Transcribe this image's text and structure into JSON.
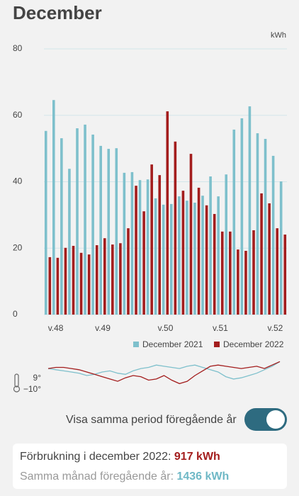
{
  "chart_data": [
    {
      "type": "bar",
      "title": "December",
      "y_label": "kWh",
      "categories": [
        null,
        "v.48",
        null,
        null,
        null,
        null,
        null,
        "v.49",
        null,
        null,
        null,
        null,
        null,
        null,
        null,
        "v.50",
        null,
        null,
        null,
        null,
        null,
        null,
        "v.51",
        null,
        null,
        null,
        null,
        null,
        null,
        "v.52",
        null
      ],
      "series": [
        {
          "name": "December 2021",
          "color": "#7ec0cc",
          "values": [
            55.3,
            64.6,
            53.1,
            43.9,
            56.1,
            57.2,
            54.2,
            50.8,
            49.9,
            50.1,
            42.7,
            42.9,
            40.5,
            40.7,
            35.0,
            33.1,
            33.3,
            35.6,
            34.3,
            33.7,
            35.8,
            41.6,
            35.6,
            42.2,
            55.7,
            59.1,
            62.7,
            54.6,
            52.9,
            47.8,
            40.1
          ]
        },
        {
          "name": "December 2022",
          "color": "#a31d1d",
          "values": [
            17.3,
            17.1,
            20.1,
            20.7,
            18.6,
            18.1,
            20.9,
            23.0,
            21.1,
            21.5,
            26.0,
            38.8,
            31.1,
            45.2,
            42.0,
            61.2,
            52.1,
            37.3,
            48.4,
            38.2,
            32.9,
            30.3,
            25.0,
            25.0,
            19.6,
            19.2,
            25.4,
            36.5,
            33.5,
            26.0,
            24.1
          ]
        }
      ],
      "ylim": [
        0,
        80
      ],
      "yticks": [
        0,
        20,
        40,
        60,
        80
      ],
      "grid": true
    },
    {
      "type": "line",
      "series": [
        {
          "name": "December 2021",
          "color": "#7ec0cc",
          "values": [
            4,
            3,
            2,
            1,
            0,
            -2,
            -1,
            1,
            2,
            0,
            -1,
            2,
            4,
            5,
            7,
            6,
            5,
            4,
            6,
            7,
            5,
            3,
            1,
            -3,
            -5,
            -4,
            -2,
            0,
            3,
            6,
            10
          ]
        },
        {
          "name": "December 2022",
          "color": "#a31d1d",
          "values": [
            4,
            5,
            5,
            4,
            3,
            1,
            -1,
            -3,
            -5,
            -7,
            -4,
            -2,
            -3,
            -6,
            -5,
            -2,
            -6,
            -9,
            -7,
            -2,
            2,
            6,
            7,
            6,
            5,
            4,
            5,
            6,
            4,
            7,
            10
          ]
        }
      ],
      "ylim": [
        -12,
        11
      ],
      "yticks": [
        {
          "value": 9,
          "label": "9°"
        },
        {
          "value": -10,
          "label": "−10°"
        }
      ]
    }
  ],
  "toggle": {
    "label": "Visa samma period föregående år",
    "on": true
  },
  "summary": {
    "current_label": "Förbrukning i december 2022:",
    "current_value": "917 kWh",
    "previous_label": "Samma månad föregående år:",
    "previous_value": "1436 kWh"
  }
}
